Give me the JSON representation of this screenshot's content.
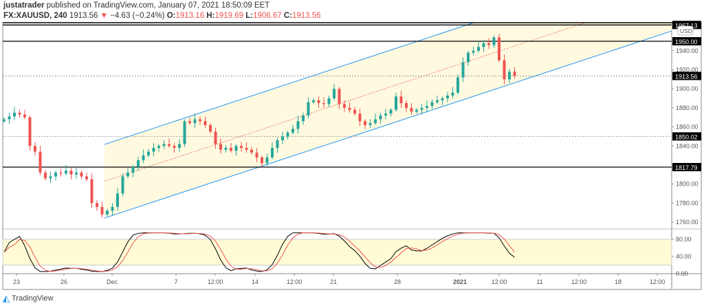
{
  "header": {
    "author": "justatrader",
    "published_text": "published on TradingView.com, January 07, 2021 18:50:09 EET",
    "symbol": "FX:XAUUSD, 240",
    "last": "1913.56",
    "change": "−4.63 (−0.24%)",
    "o_label": "O:",
    "o": "1913.16",
    "h_label": "H:",
    "h": "1919.69",
    "l_label": "L:",
    "l": "1906.67",
    "c_label": "C:",
    "c": "1913.56"
  },
  "currency": "USD",
  "brand": "TradingView",
  "colors": {
    "up": "#26a69a",
    "down": "#ef5350",
    "channel": "#2196f3",
    "channel_fill": "#fff8dc",
    "stoch_k": "#000000",
    "stoch_d": "#ef5350",
    "stoch_band": "#fffbd5"
  },
  "chart_data": {
    "type": "candlestick",
    "interval": "240",
    "ylim": [
      1750,
      1970
    ],
    "price_ticks": [
      "1940.00",
      "1920.00",
      "1900.00",
      "1880.00",
      "1860.00",
      "1840.00",
      "1800.00",
      "1780.00",
      "1760.00"
    ],
    "price_labels": [
      {
        "value": 1967.13,
        "label": "1967.13",
        "style": "solid"
      },
      {
        "value": 1950.0,
        "label": "1950.00",
        "style": "solid"
      },
      {
        "value": 1913.56,
        "label": "1913.56",
        "style": "dotted"
      },
      {
        "value": 1850.02,
        "label": "1850.02",
        "style": "dotted"
      },
      {
        "value": 1817.79,
        "label": "1817.79",
        "style": "solid"
      }
    ],
    "time_ticks": [
      "23",
      "26",
      "Dec",
      "7",
      "12:00",
      "14",
      "12:00",
      "21",
      "28",
      "2021",
      "12:00",
      "11",
      "12:00",
      "18",
      "12:00"
    ],
    "closes": [
      1868,
      1871,
      1875,
      1873,
      1870,
      1840,
      1834,
      1812,
      1806,
      1808,
      1812,
      1811,
      1814,
      1810,
      1812,
      1808,
      1805,
      1780,
      1776,
      1768,
      1772,
      1776,
      1790,
      1808,
      1812,
      1818,
      1825,
      1830,
      1834,
      1838,
      1840,
      1842,
      1840,
      1838,
      1842,
      1866,
      1864,
      1868,
      1866,
      1862,
      1855,
      1842,
      1836,
      1838,
      1835,
      1840,
      1838,
      1836,
      1833,
      1828,
      1822,
      1828,
      1838,
      1846,
      1850,
      1854,
      1858,
      1866,
      1872,
      1886,
      1888,
      1885,
      1884,
      1890,
      1900,
      1884,
      1880,
      1878,
      1874,
      1866,
      1862,
      1864,
      1868,
      1872,
      1874,
      1878,
      1892,
      1885,
      1880,
      1876,
      1878,
      1880,
      1882,
      1886,
      1888,
      1890,
      1893,
      1896,
      1912,
      1928,
      1938,
      1940,
      1944,
      1948,
      1946,
      1954,
      1930,
      1910,
      1918,
      1913.56
    ],
    "channel": {
      "start_date": "Nov 30",
      "end_date": "Jan 20",
      "lower_start": 1764.3,
      "lower_end": 1960.8,
      "upper_start": 1841.6,
      "upper_end": 2038.1
    },
    "stochastic": {
      "ticks": [
        "80.00",
        "40.00",
        "0.00"
      ],
      "band": [
        20,
        80
      ],
      "ylim": [
        0,
        100
      ]
    }
  }
}
